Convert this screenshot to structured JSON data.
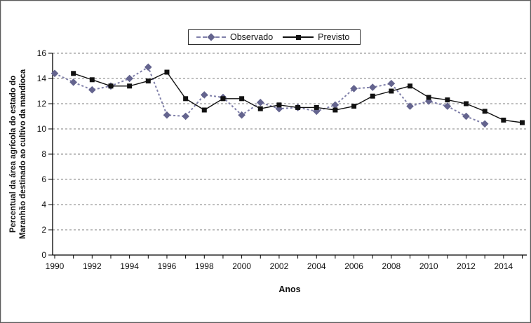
{
  "figure": {
    "xlabel": "Anos",
    "ylabel_line1": "Percentual da área agrícola do estado do",
    "ylabel_line2": "Maranhão destinado ao cultivo da mandioca"
  },
  "colors": {
    "observado_marker": "#64648e",
    "observado_line": "#8080aa",
    "previsto": "#111111",
    "gridline": "#7f7f7f",
    "axis": "#000000"
  },
  "chart_data": {
    "type": "line",
    "title": "",
    "xlabel": "Anos",
    "ylabel": "Percentual da área agrícola do estado do Maranhão destinado ao cultivo da mandioca",
    "xlim": [
      1990,
      2015
    ],
    "ylim": [
      0,
      16
    ],
    "y_tick_step": 2,
    "y_tick_labels": [
      "0",
      "2",
      "4",
      "6",
      "8",
      "10",
      "12",
      "14",
      "16"
    ],
    "x_tick_labels": [
      "1990",
      "1992",
      "1994",
      "1996",
      "1998",
      "2000",
      "2002",
      "2004",
      "2006",
      "2008",
      "2010",
      "2012",
      "2014"
    ],
    "x_minor_tick_every_year": true,
    "grid": "horizontal-dashed",
    "legend_position": "top-center",
    "series": [
      {
        "name": "Observado",
        "marker": "diamond",
        "line_style": "dashed",
        "color": "#64648e",
        "x": [
          1990,
          1991,
          1992,
          1993,
          1994,
          1995,
          1996,
          1997,
          1998,
          1999,
          2000,
          2001,
          2002,
          2003,
          2004,
          2005,
          2006,
          2007,
          2008,
          2009,
          2010,
          2011,
          2012,
          2013
        ],
        "values": [
          14.4,
          13.7,
          13.1,
          13.4,
          14.0,
          14.9,
          11.1,
          11.0,
          12.7,
          12.5,
          11.1,
          12.1,
          11.6,
          11.7,
          11.4,
          11.9,
          13.2,
          13.3,
          13.6,
          11.8,
          12.2,
          11.8,
          11.0,
          10.4
        ]
      },
      {
        "name": "Previsto",
        "marker": "square",
        "line_style": "solid",
        "color": "#111111",
        "x": [
          1991,
          1992,
          1993,
          1994,
          1995,
          1996,
          1997,
          1998,
          1999,
          2000,
          2001,
          2002,
          2003,
          2004,
          2005,
          2006,
          2007,
          2008,
          2009,
          2010,
          2011,
          2012,
          2013,
          2014,
          2015
        ],
        "values": [
          14.4,
          13.9,
          13.4,
          13.4,
          13.8,
          14.5,
          12.4,
          11.5,
          12.4,
          12.4,
          11.6,
          11.9,
          11.7,
          11.7,
          11.5,
          11.8,
          12.6,
          13.0,
          13.4,
          12.5,
          12.3,
          12.0,
          11.4,
          10.7,
          10.5
        ]
      }
    ]
  }
}
